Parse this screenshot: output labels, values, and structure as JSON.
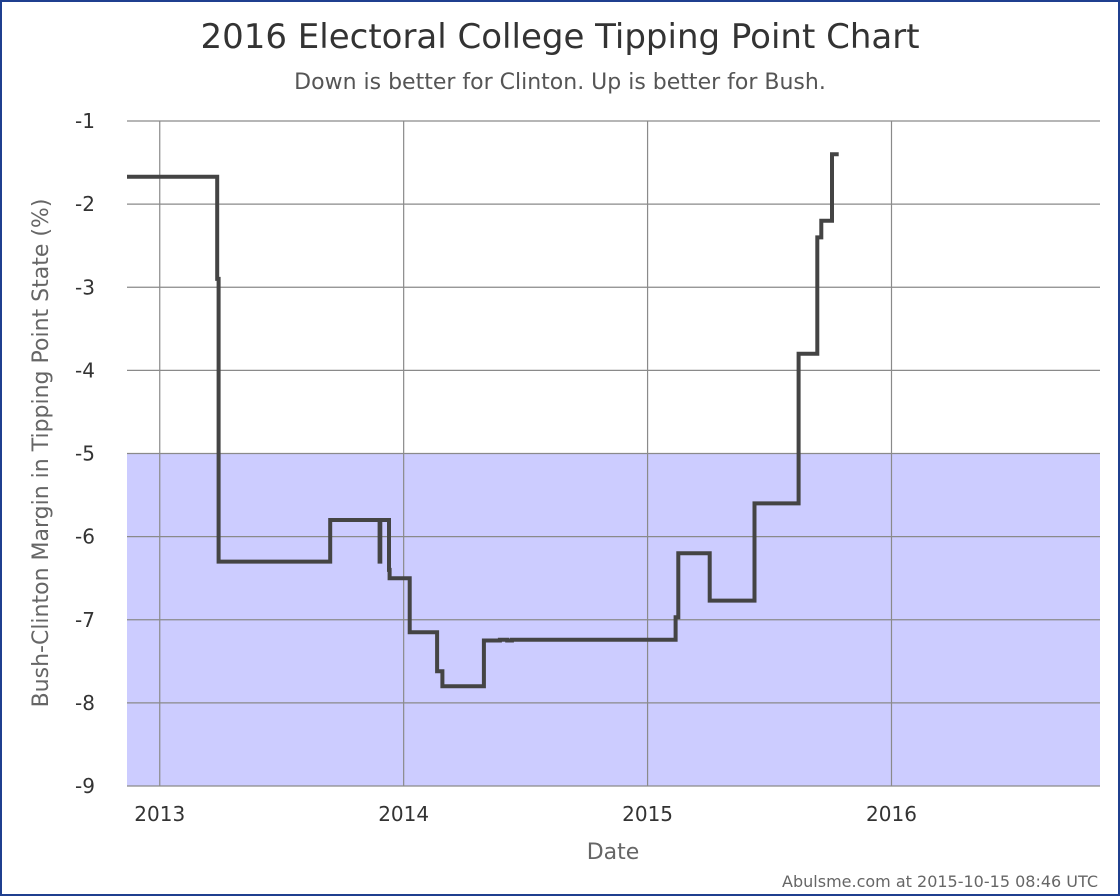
{
  "chart_data": {
    "type": "line",
    "title": "2016 Electoral College Tipping Point Chart",
    "subtitle": "Down is better for Clinton. Up is better for Bush.",
    "xlabel": "Date",
    "ylabel": "Bush-Clinton Margin in Tipping Point State (%)",
    "credit": "Abulsme.com at 2015-10-15 08:46 UTC",
    "x_range": [
      "2012-11-13",
      "2016-11-08"
    ],
    "ylim": [
      -9,
      -1
    ],
    "x_ticks": [
      {
        "label": "2013",
        "date": "2013-01-01"
      },
      {
        "label": "2014",
        "date": "2014-01-01"
      },
      {
        "label": "2015",
        "date": "2015-01-01"
      },
      {
        "label": "2016",
        "date": "2016-01-01"
      }
    ],
    "y_ticks": [
      {
        "label": "-1",
        "value": -1
      },
      {
        "label": "-2",
        "value": -2
      },
      {
        "label": "-3",
        "value": -3
      },
      {
        "label": "-4",
        "value": -4
      },
      {
        "label": "-5",
        "value": -5
      },
      {
        "label": "-6",
        "value": -6
      },
      {
        "label": "-7",
        "value": -7
      },
      {
        "label": "-8",
        "value": -8
      },
      {
        "label": "-9",
        "value": -9
      }
    ],
    "grid": true,
    "band": {
      "from": -9,
      "to": -5,
      "color": "#ccccff"
    },
    "line_color": "#444444",
    "series": [
      {
        "step": true,
        "points": [
          {
            "x": "2012-11-13",
            "y": -1.67
          },
          {
            "x": "2013-03-28",
            "y": -2.9
          },
          {
            "x": "2013-03-30",
            "y": -6.3
          },
          {
            "x": "2013-09-13",
            "y": -5.8
          },
          {
            "x": "2013-11-26",
            "y": -6.3
          },
          {
            "x": "2013-11-27",
            "y": -5.8
          },
          {
            "x": "2013-12-10",
            "y": -6.4
          },
          {
            "x": "2013-12-11",
            "y": -6.5
          },
          {
            "x": "2014-01-10",
            "y": -7.15
          },
          {
            "x": "2014-02-20",
            "y": -7.62
          },
          {
            "x": "2014-02-28",
            "y": -7.8
          },
          {
            "x": "2014-05-01",
            "y": -7.25
          },
          {
            "x": "2014-05-25",
            "y": -7.24
          },
          {
            "x": "2014-06-05",
            "y": -7.25
          },
          {
            "x": "2014-06-12",
            "y": -7.24
          },
          {
            "x": "2015-02-12",
            "y": -6.97
          },
          {
            "x": "2015-02-16",
            "y": -6.2
          },
          {
            "x": "2015-04-04",
            "y": -6.77
          },
          {
            "x": "2015-06-10",
            "y": -5.6
          },
          {
            "x": "2015-08-15",
            "y": -3.8
          },
          {
            "x": "2015-09-12",
            "y": -2.4
          },
          {
            "x": "2015-09-18",
            "y": -2.2
          },
          {
            "x": "2015-10-04",
            "y": -1.4
          },
          {
            "x": "2015-10-14",
            "y": -1.4
          }
        ]
      }
    ]
  }
}
